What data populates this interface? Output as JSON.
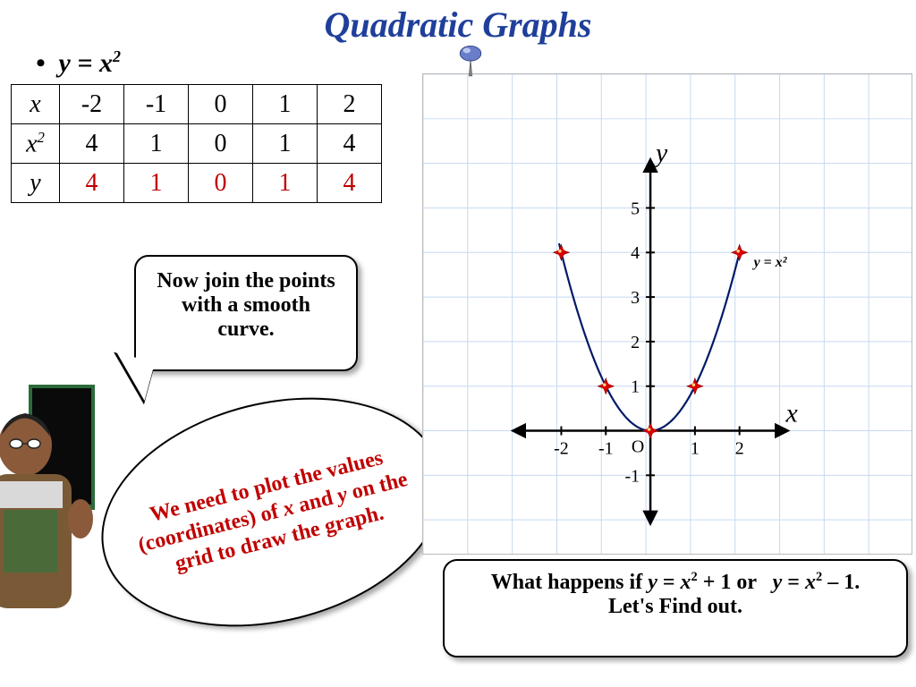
{
  "title": "Quadratic Graphs",
  "title_color": "#1f3f9a",
  "equation": "y = x2",
  "table": {
    "row_headers": [
      "x",
      "x2",
      "y"
    ],
    "columns": [
      "-2",
      "-1",
      "0",
      "1",
      "2"
    ],
    "rows": [
      [
        "4",
        "1",
        "0",
        "1",
        "4"
      ],
      [
        "4",
        "1",
        "0",
        "1",
        "4"
      ]
    ],
    "y_row_color": "#c00000"
  },
  "speech1": "Now join the points with a smooth curve.",
  "speech2": "We need to plot the values (coordinates) of x and y on the grid to draw the graph.",
  "question_line1": "What happens if y = x2 + 1 or   y = x2 – 1.",
  "question_line2": "Let's Find out.",
  "chart": {
    "type": "scatter_with_curve",
    "x_label": "x",
    "y_label": "y",
    "curve_label": "y = x²",
    "xlim": [
      -3,
      3
    ],
    "ylim": [
      -2,
      6
    ],
    "x_ticks": [
      -2,
      -1,
      1,
      2
    ],
    "y_ticks": [
      -1,
      1,
      2,
      3,
      4,
      5
    ],
    "grid_color": "#c7d9f2",
    "axis_color": "#000000",
    "curve_color": "#001a66",
    "curve_width": 2.2,
    "point_color": "#d90000",
    "point_shine": "#ffd27a",
    "point_radius": 6,
    "points": [
      {
        "x": -2,
        "y": 4
      },
      {
        "x": -1,
        "y": 1
      },
      {
        "x": 0,
        "y": 0
      },
      {
        "x": 1,
        "y": 1
      },
      {
        "x": 2,
        "y": 4
      }
    ],
    "background_color": "#ffffff",
    "tick_font": "Comic Sans MS, cursive",
    "tick_fontsize": 20,
    "label_fontsize": 30
  }
}
